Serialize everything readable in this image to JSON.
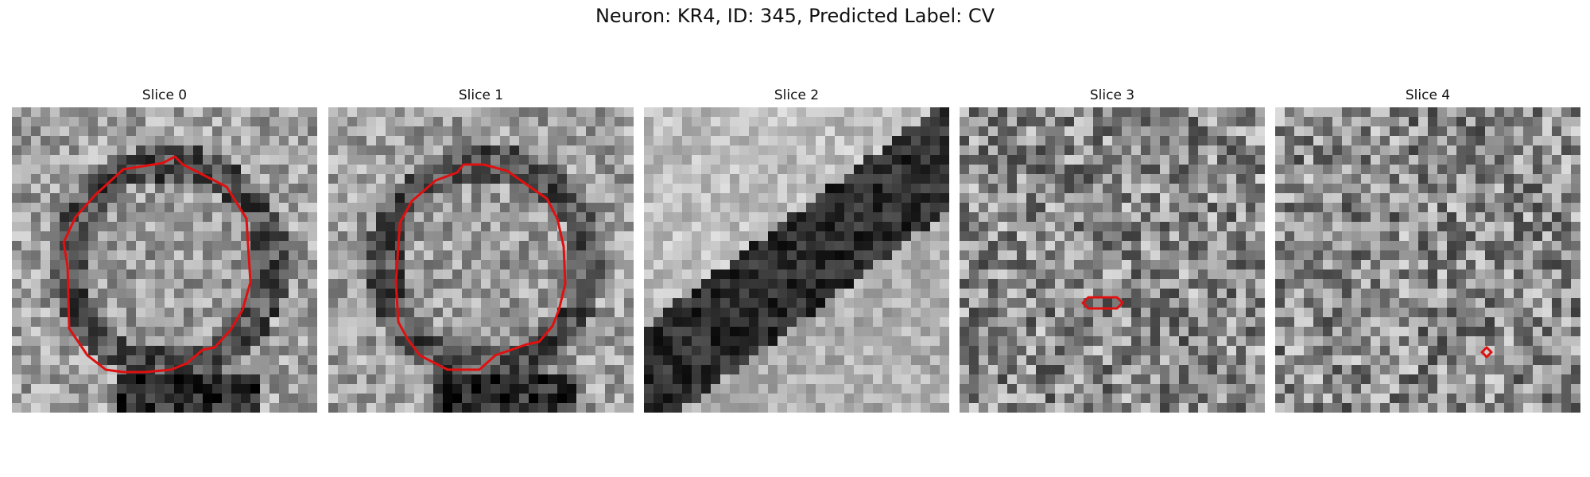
{
  "figure": {
    "title": "Neuron: KR4, ID: 345, Predicted Label: CV"
  },
  "panels": [
    {
      "title": "Slice 0",
      "description": "Noisy grayscale pixelated EM slice; roughly circular lighter structure with dark rim, outlined with a red contour",
      "contour": "large-round",
      "structure": {
        "shape": "round-blob",
        "rim": "dark"
      }
    },
    {
      "title": "Slice 1",
      "description": "Noisy grayscale EM slice; circular structure with dark surrounding band, outlined with a red contour",
      "contour": "large-round",
      "structure": {
        "shape": "round-blob",
        "rim": "dark"
      }
    },
    {
      "title": "Slice 2",
      "description": "Noisy grayscale EM slice; dark diagonal band from lower-left to upper-right, no contour",
      "contour": "none",
      "structure": {
        "shape": "diagonal-band"
      }
    },
    {
      "title": "Slice 3",
      "description": "Noisy grayscale EM slice; small red hexagonal contour near the center",
      "contour": "small-hexagon",
      "structure": {
        "shape": "scattered-dark"
      }
    },
    {
      "title": "Slice 4",
      "description": "Noisy grayscale EM slice; tiny red diamond contour in lower-right area",
      "contour": "tiny-diamond",
      "structure": {
        "shape": "scattered-dark"
      }
    }
  ],
  "colors": {
    "contour": "#e01010",
    "title_text": "#111111",
    "background": "#ffffff"
  }
}
